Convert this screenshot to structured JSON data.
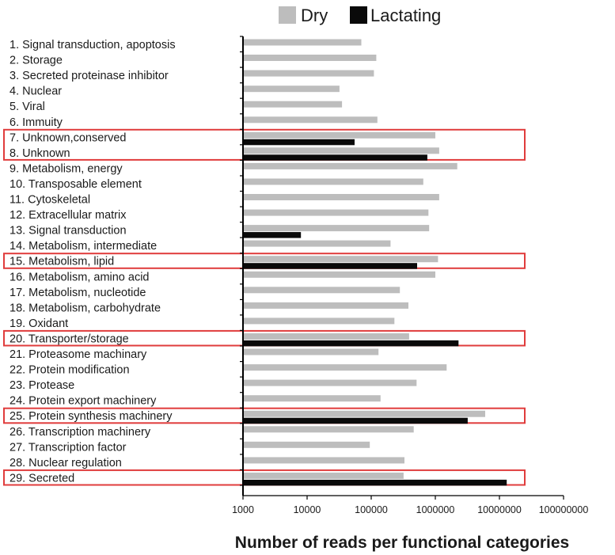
{
  "chart_data": {
    "type": "bar",
    "orientation": "horizontal",
    "x_scale": "log",
    "xlim": [
      1000,
      100000000
    ],
    "x_ticks": [
      "1000",
      "10000",
      "100000",
      "1000000",
      "10000000",
      "100000000"
    ],
    "xlabel": "Number of reads per functional categories",
    "legend_position": "top",
    "grid": false,
    "categories": [
      "1. Signal transduction, apoptosis",
      "2. Storage",
      "3. Secreted proteinase inhibitor",
      "4. Nuclear",
      "5. Viral",
      "6. Immuity",
      "7. Unknown,conserved",
      "8. Unknown",
      "9. Metabolism, energy",
      "10. Transposable element",
      "11. Cytoskeletal",
      "12. Extracellular matrix",
      "13. Signal transduction",
      "14. Metabolism, intermediate",
      "15. Metabolism, lipid",
      "16. Metabolism, amino acid",
      "17. Metabolism, nucleotide",
      "18. Metabolism, carbohydrate",
      "19. Oxidant",
      "20. Transporter/storage",
      "21. Proteasome machinary",
      "22. Protein modification",
      "23. Protease",
      "24. Protein export machinery",
      "25. Protein synthesis machinery",
      "26. Transcription machinery",
      "27. Transcription factor",
      "28. Nuclear regulation",
      "29. Secreted"
    ],
    "series": [
      {
        "name": "Dry",
        "color": "#bdbdbd",
        "values": [
          70000,
          120000,
          110000,
          32000,
          35000,
          125000,
          1000000,
          1150000,
          2200000,
          650000,
          1150000,
          780000,
          800000,
          200000,
          1100000,
          1000000,
          280000,
          380000,
          230000,
          390000,
          130000,
          1500000,
          510000,
          140000,
          6000000,
          460000,
          95000,
          330000,
          320000
        ]
      },
      {
        "name": "Lactating",
        "color": "#0a0a0a",
        "values": [
          null,
          null,
          null,
          null,
          null,
          null,
          55000,
          750000,
          null,
          null,
          null,
          null,
          8000,
          null,
          520000,
          null,
          null,
          null,
          null,
          2300000,
          null,
          null,
          null,
          null,
          3200000,
          null,
          null,
          null,
          13000000
        ]
      }
    ],
    "highlighted_categories": [
      "7. Unknown,conserved",
      "8. Unknown",
      "15. Metabolism, lipid",
      "20. Transporter/storage",
      "25. Protein synthesis machinery",
      "29. Secreted"
    ],
    "highlight_color": "#e03c3c"
  }
}
